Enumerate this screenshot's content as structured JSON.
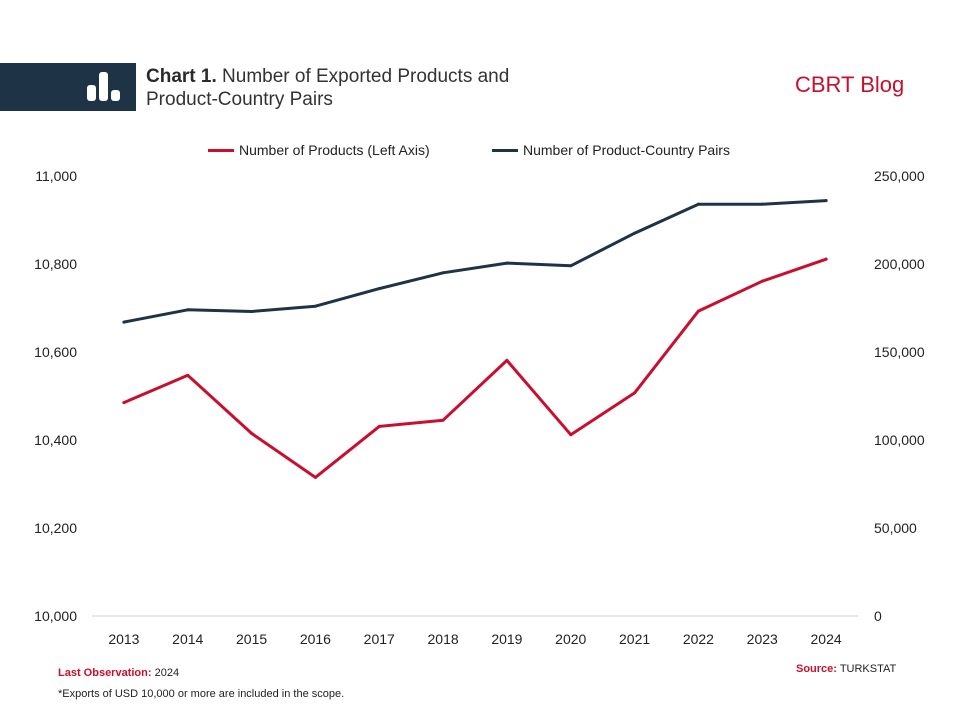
{
  "header": {
    "title_bold": "Chart 1.",
    "title_rest": " Number of Exported Products and",
    "title_line2": "Product-Country Pairs",
    "brand": "CBRT Blog"
  },
  "logo": {
    "icon": "bar-chart-icon"
  },
  "colors": {
    "products": "#c8102e",
    "pairs": "#1f3347",
    "band": "#1f3347"
  },
  "legend": [
    {
      "label": "Number of Products (Left Axis)",
      "color": "#c8102e"
    },
    {
      "label": "Number of Product-Country Pairs",
      "color": "#1f3347"
    }
  ],
  "chart_data": {
    "type": "line",
    "x": [
      "2013",
      "2014",
      "2015",
      "2016",
      "2017",
      "2018",
      "2019",
      "2020",
      "2021",
      "2022",
      "2023",
      "2024"
    ],
    "series": [
      {
        "name": "Number of Products (Left Axis)",
        "axis": "left",
        "values": [
          10485,
          10547,
          10415,
          10315,
          10431,
          10445,
          10581,
          10412,
          10507,
          10693,
          10761,
          10811
        ]
      },
      {
        "name": "Number of Product-Country Pairs",
        "axis": "right",
        "values": [
          167000,
          174000,
          173000,
          176000,
          186000,
          195000,
          200500,
          199000,
          217500,
          234000,
          234000,
          236000
        ]
      }
    ],
    "left_axis": {
      "ylim": [
        10000,
        11000
      ],
      "ticks": [
        "10,000",
        "10,200",
        "10,400",
        "10,600",
        "10,800",
        "11,000"
      ]
    },
    "right_axis": {
      "ylim": [
        0,
        250000
      ],
      "ticks": [
        "0",
        "50,000",
        "100,000",
        "150,000",
        "200,000",
        "250,000"
      ]
    },
    "grid": false,
    "legend_position": "top"
  },
  "footer": {
    "last_obs_label": "Last Observation:",
    "last_obs_value": " 2024",
    "note": "*Exports of USD 10,000  or more are included in the scope.",
    "source_label": "Source:",
    "source_value": " TURKSTAT"
  }
}
